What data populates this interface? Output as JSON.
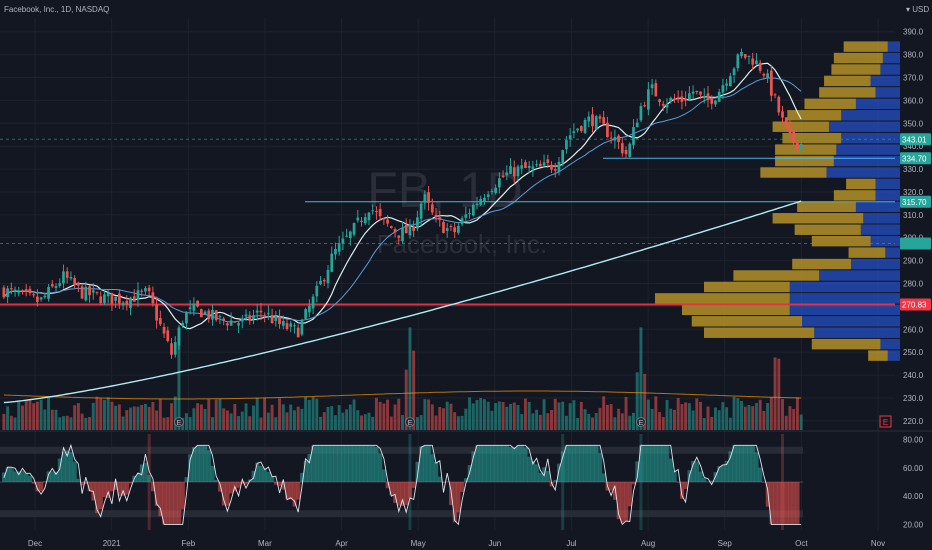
{
  "chart_data": {
    "type": "candlestick",
    "header": {
      "symbol_line": "Facebook, Inc., 1D, NASDAQ",
      "currency": "USD"
    },
    "watermark": {
      "ticker": "FB, 1D",
      "name": "Facebook, Inc."
    },
    "x_labels": [
      "Dec",
      "2021",
      "Feb",
      "Mar",
      "Apr",
      "May",
      "Jun",
      "Jul",
      "Aug",
      "Sep",
      "Oct",
      "Nov"
    ],
    "y_ticks": [
      390,
      380,
      370,
      360,
      350,
      340,
      330,
      320,
      310,
      300,
      290,
      280,
      270,
      260,
      250,
      240,
      230,
      220
    ],
    "ylim": [
      216,
      396
    ],
    "badges": [
      {
        "label": "343.01",
        "value": 343.01,
        "color": "#26a69a"
      },
      {
        "label": "334.70",
        "value": 334.7,
        "color": "#26a69a"
      },
      {
        "label": "315.70",
        "value": 315.7,
        "color": "#26a69a"
      },
      {
        "label": "270.83",
        "value": 270.83,
        "color": "#f23645"
      }
    ],
    "hidden_badge": {
      "value": 297.5
    },
    "levels": [
      {
        "value": 270.83,
        "color": "#f23645"
      },
      {
        "value": 315.7,
        "color": "#4fc3f7"
      },
      {
        "value": 334.7,
        "color": "#4fc3f7"
      },
      {
        "value": 297.5,
        "color": "#26a69a"
      },
      {
        "value": 343.01,
        "color": "#26a69a"
      }
    ],
    "price_path": [
      [
        0,
        277
      ],
      [
        6,
        272
      ],
      [
        10,
        283
      ],
      [
        13,
        276
      ],
      [
        16,
        274
      ],
      [
        20,
        273
      ],
      [
        24,
        276
      ],
      [
        26,
        262
      ],
      [
        28,
        249
      ],
      [
        30,
        266
      ],
      [
        32,
        269
      ],
      [
        36,
        264
      ],
      [
        40,
        263
      ],
      [
        43,
        268
      ],
      [
        46,
        262
      ],
      [
        49,
        259
      ],
      [
        52,
        275
      ],
      [
        55,
        293
      ],
      [
        58,
        302
      ],
      [
        61,
        314
      ],
      [
        63,
        307
      ],
      [
        66,
        302
      ],
      [
        68,
        303
      ],
      [
        70,
        318
      ],
      [
        72,
        307
      ],
      [
        75,
        302
      ],
      [
        78,
        313
      ],
      [
        81,
        322
      ],
      [
        84,
        328
      ],
      [
        86,
        330
      ],
      [
        89,
        330
      ],
      [
        92,
        332
      ],
      [
        94,
        344
      ],
      [
        96,
        349
      ],
      [
        98,
        352
      ],
      [
        100,
        348
      ],
      [
        102,
        343
      ],
      [
        104,
        336
      ],
      [
        106,
        356
      ],
      [
        108,
        365
      ],
      [
        110,
        360
      ],
      [
        113,
        360
      ],
      [
        115,
        364
      ],
      [
        117,
        359
      ],
      [
        119,
        363
      ],
      [
        121,
        372
      ],
      [
        123,
        380
      ],
      [
        125,
        378
      ],
      [
        127,
        372
      ],
      [
        129,
        357
      ],
      [
        131,
        343
      ],
      [
        133,
        341
      ]
    ],
    "n_bars": 215,
    "volume_profile": [
      {
        "price": 383.5,
        "up": 0.18,
        "down": 0.05
      },
      {
        "price": 378.5,
        "up": 0.2,
        "down": 0.07
      },
      {
        "price": 373.5,
        "up": 0.2,
        "down": 0.08
      },
      {
        "price": 368.5,
        "up": 0.19,
        "down": 0.12
      },
      {
        "price": 363.5,
        "up": 0.23,
        "down": 0.1
      },
      {
        "price": 358.5,
        "up": 0.21,
        "down": 0.18
      },
      {
        "price": 353.5,
        "up": 0.22,
        "down": 0.24
      },
      {
        "price": 348.5,
        "up": 0.23,
        "down": 0.29
      },
      {
        "price": 343.5,
        "up": 0.24,
        "down": 0.24
      },
      {
        "price": 338.5,
        "up": 0.25,
        "down": 0.26
      },
      {
        "price": 333.5,
        "up": 0.24,
        "down": 0.27
      },
      {
        "price": 328.5,
        "up": 0.27,
        "down": 0.3
      },
      {
        "price": 323.5,
        "up": 0.12,
        "down": 0.1
      },
      {
        "price": 318.5,
        "up": 0.17,
        "down": 0.1
      },
      {
        "price": 313.5,
        "up": 0.24,
        "down": 0.18
      },
      {
        "price": 308.5,
        "up": 0.37,
        "down": 0.15
      },
      {
        "price": 303.5,
        "up": 0.27,
        "down": 0.16
      },
      {
        "price": 298.5,
        "up": 0.24,
        "down": 0.12
      },
      {
        "price": 293.5,
        "up": 0.15,
        "down": 0.06
      },
      {
        "price": 288.5,
        "up": 0.24,
        "down": 0.2
      },
      {
        "price": 283.5,
        "up": 0.35,
        "down": 0.33
      },
      {
        "price": 278.5,
        "up": 0.35,
        "down": 0.45
      },
      {
        "price": 273.5,
        "up": 0.55,
        "down": 0.45
      },
      {
        "price": 268.5,
        "up": 0.44,
        "down": 0.45
      },
      {
        "price": 263.5,
        "up": 0.45,
        "down": 0.4
      },
      {
        "price": 258.5,
        "up": 0.45,
        "down": 0.35
      },
      {
        "price": 253.5,
        "up": 0.28,
        "down": 0.08
      },
      {
        "price": 248.5,
        "up": 0.08,
        "down": 0.05
      }
    ],
    "oscillator": {
      "y_ticks": [
        80.0,
        60.0,
        40.0,
        20.0
      ],
      "tick_labels": [
        "80.00",
        "60.00",
        "40.00",
        "20.00"
      ],
      "ylim": [
        16,
        84
      ],
      "bands": [
        [
          70,
          75
        ],
        [
          25,
          30
        ]
      ],
      "mid_line": 50,
      "marker_bars": [
        39,
        109,
        150,
        171,
        209
      ]
    },
    "earnings_markers": [
      {
        "bar": 47,
        "label": "E"
      },
      {
        "bar": 109,
        "label": "E"
      },
      {
        "bar": 171,
        "label": "E"
      }
    ],
    "earnings_marker_next": {
      "label": "E"
    }
  }
}
